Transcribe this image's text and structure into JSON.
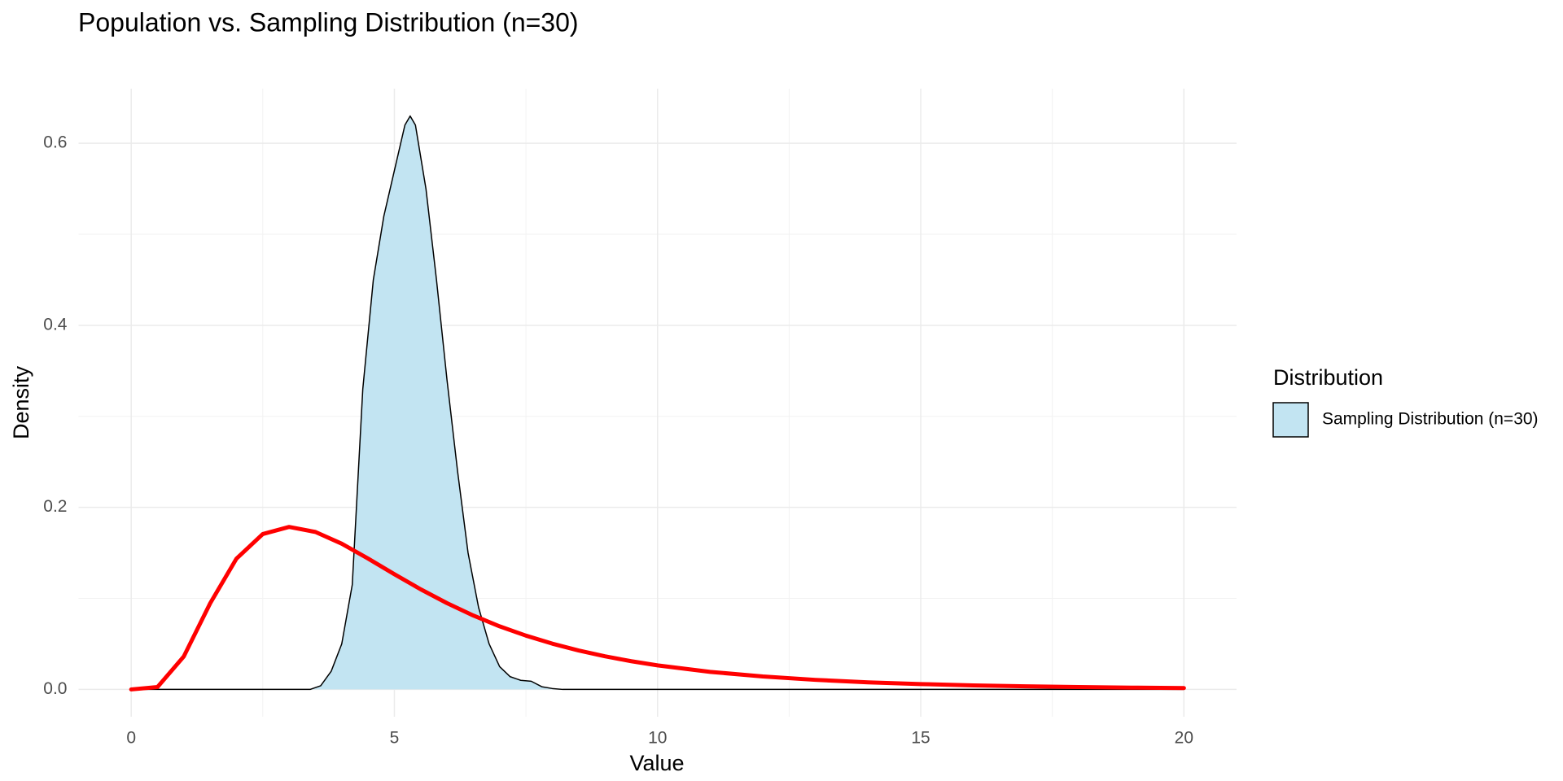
{
  "chart_data": {
    "type": "density",
    "title": "Population vs. Sampling Distribution (n=30)",
    "x_label": "Value",
    "y_label": "Density",
    "legend_title": "Distribution",
    "legend": "right",
    "grid": true,
    "xlim": [
      -1,
      21
    ],
    "ylim": [
      -0.03,
      0.66
    ],
    "xticks": [
      0,
      5,
      10,
      15,
      20
    ],
    "yticks": [
      {
        "value": 0,
        "label": "0.0"
      },
      0.2,
      0.4,
      0.6
    ],
    "xminorticks": [
      2.5,
      7.5,
      12.5,
      17.5
    ],
    "yminorticks": [
      0.1,
      0.3,
      0.5
    ],
    "series": [
      {
        "name": "Sampling Distribution (n=30)",
        "kind": "area",
        "color": "#c2e4f2",
        "outline": "#000000",
        "x": [
          0,
          3.4,
          3.6,
          3.8,
          4.0,
          4.2,
          4.4,
          4.6,
          4.8,
          5.0,
          5.2,
          5.3,
          5.4,
          5.6,
          5.8,
          6.0,
          6.2,
          6.4,
          6.6,
          6.8,
          7.0,
          7.2,
          7.4,
          7.6,
          7.8,
          8.0,
          8.2,
          20
        ],
        "values": [
          0,
          0,
          0.004,
          0.02,
          0.05,
          0.115,
          0.33,
          0.45,
          0.52,
          0.57,
          0.62,
          0.63,
          0.62,
          0.55,
          0.45,
          0.34,
          0.24,
          0.15,
          0.09,
          0.05,
          0.025,
          0.014,
          0.01,
          0.009,
          0.003,
          0.001,
          0,
          0
        ]
      },
      {
        "kind": "line",
        "color": "#ff0000",
        "x": [
          0,
          0.5,
          1,
          1.5,
          2,
          2.5,
          3,
          3.5,
          4,
          4.5,
          5,
          5.5,
          6,
          6.5,
          7,
          7.5,
          8,
          8.5,
          9,
          9.5,
          10,
          11,
          12,
          13,
          14,
          15,
          16,
          17,
          18,
          19,
          20
        ],
        "values": [
          0,
          0.0026,
          0.0363,
          0.0946,
          0.1437,
          0.1707,
          0.1785,
          0.173,
          0.1601,
          0.1438,
          0.1266,
          0.11,
          0.0948,
          0.0812,
          0.0693,
          0.0591,
          0.0503,
          0.0428,
          0.0364,
          0.031,
          0.0264,
          0.0193,
          0.0142,
          0.0105,
          0.0078,
          0.0059,
          0.0044,
          0.0034,
          0.0026,
          0.002,
          0.0015
        ]
      }
    ]
  }
}
